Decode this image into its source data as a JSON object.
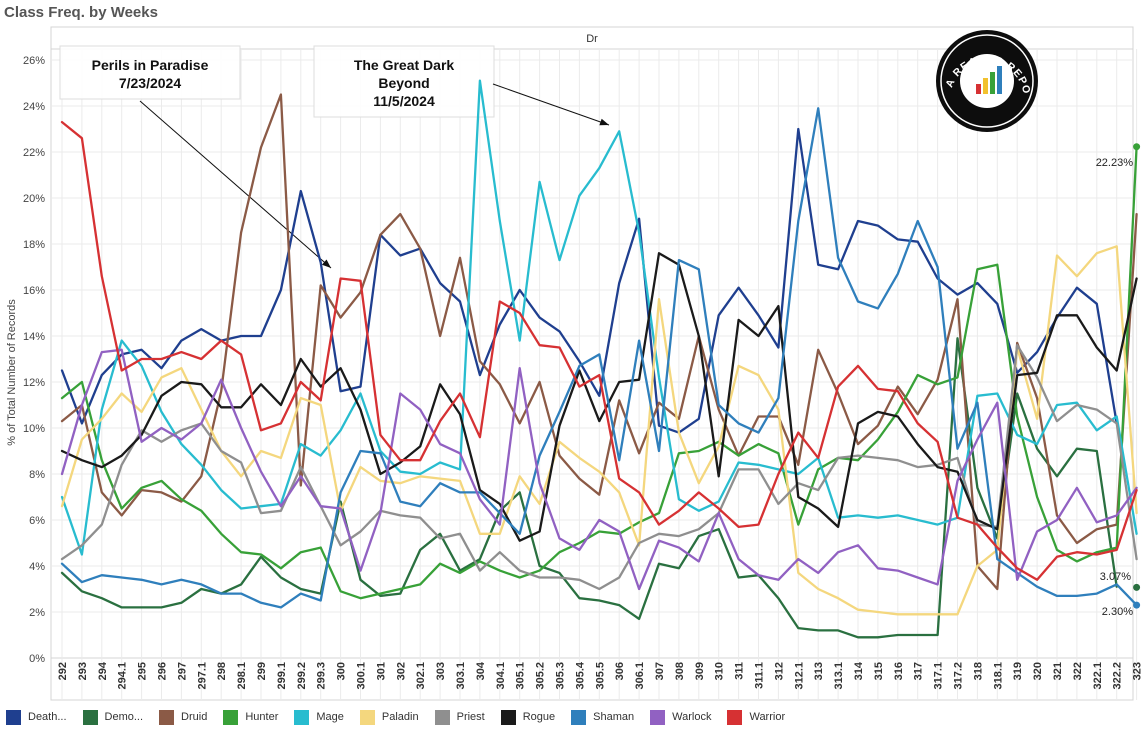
{
  "title": "Class Freq. by Weeks",
  "chart_data": {
    "type": "line",
    "column_header": "Dr",
    "ylabel": "% of Total Number of Records",
    "ylim": [
      0,
      26
    ],
    "yticks": [
      "0%",
      "2%",
      "4%",
      "6%",
      "8%",
      "10%",
      "12%",
      "14%",
      "16%",
      "18%",
      "20%",
      "22%",
      "24%",
      "26%"
    ],
    "grid": true,
    "legend_position": "bottom",
    "x_tick_labels": [
      "292",
      "293",
      "294",
      "294.1",
      "295",
      "296",
      "297",
      "297.1",
      "298",
      "298.1",
      "299",
      "299.1",
      "299.2",
      "299.3",
      "300",
      "300.1",
      "301",
      "302",
      "302.1",
      "303",
      "303.1",
      "304",
      "304.1",
      "305.1",
      "305.2",
      "305.3",
      "305.4",
      "305.5",
      "306",
      "306.1",
      "307",
      "308",
      "309",
      "310",
      "311",
      "311.1",
      "312",
      "312.1",
      "313",
      "313.1",
      "314",
      "315",
      "316",
      "317",
      "317.1",
      "317.2",
      "318",
      "318.1",
      "319",
      "320",
      "321",
      "322",
      "322.1",
      "322.2",
      "323"
    ],
    "annotations": [
      {
        "lines": [
          "Perils in Paradise",
          "7/23/2024"
        ]
      },
      {
        "lines": [
          "The Great Dark",
          "Beyond",
          "11/5/2024"
        ]
      }
    ],
    "end_labels": [
      "22.23%",
      "3.07%",
      "2.30%"
    ],
    "logo_text": "DATA REAPER REPORT",
    "series": [
      {
        "name": "Death...",
        "color": "#1f3f8f",
        "values": [
          12.5,
          10.2,
          12.3,
          13.2,
          13.4,
          12.6,
          13.8,
          14.3,
          13.8,
          14.0,
          14.0,
          16.0,
          20.3,
          17.2,
          11.6,
          11.8,
          18.4,
          17.5,
          17.8,
          16.3,
          15.5,
          12.3,
          14.5,
          16.0,
          14.8,
          14.2,
          12.9,
          11.4,
          16.3,
          19.1,
          10.1,
          9.8,
          10.4,
          14.9,
          16.1,
          14.9,
          13.5,
          23.0,
          17.1,
          16.9,
          19.0,
          18.8,
          18.2,
          18.1,
          16.5,
          15.8,
          16.3,
          15.4,
          12.4,
          13.3,
          14.8,
          16.1,
          15.4,
          10.2,
          null
        ]
      },
      {
        "name": "Demo...",
        "color": "#2a7040",
        "values": [
          3.7,
          2.9,
          2.6,
          2.2,
          2.2,
          2.2,
          2.4,
          3.0,
          2.8,
          3.2,
          4.4,
          3.5,
          3.0,
          2.8,
          6.8,
          3.4,
          2.7,
          2.8,
          4.7,
          5.4,
          3.8,
          4.3,
          6.4,
          7.2,
          4.0,
          3.7,
          2.6,
          2.5,
          2.3,
          1.7,
          4.1,
          3.9,
          5.3,
          5.6,
          3.5,
          3.6,
          2.6,
          1.3,
          1.2,
          1.2,
          0.9,
          0.9,
          1.0,
          1.0,
          1.0,
          13.9,
          7.4,
          5.2,
          11.5,
          9.1,
          7.9,
          9.1,
          9.0,
          3.1,
          null
        ]
      },
      {
        "name": "Druid",
        "color": "#8b5a46",
        "values": [
          10.3,
          11.0,
          7.2,
          6.2,
          7.3,
          7.2,
          6.8,
          7.9,
          11.6,
          18.5,
          22.2,
          24.5,
          7.5,
          16.2,
          14.8,
          15.9,
          18.4,
          19.3,
          17.8,
          14.0,
          17.4,
          12.9,
          11.9,
          10.2,
          12.0,
          8.8,
          7.8,
          7.1,
          11.2,
          8.9,
          11.1,
          10.4,
          14.0,
          10.8,
          8.8,
          10.5,
          10.5,
          8.4,
          13.4,
          11.5,
          9.3,
          10.1,
          11.8,
          10.6,
          12.1,
          15.6,
          4.0,
          3.0,
          13.7,
          11.3,
          6.2,
          5.0,
          5.6,
          5.8,
          19.3
        ]
      },
      {
        "name": "Hunter",
        "color": "#38a138",
        "values": [
          11.3,
          12.0,
          8.6,
          6.5,
          7.4,
          7.7,
          6.9,
          6.4,
          5.4,
          4.6,
          4.5,
          3.9,
          4.6,
          4.8,
          2.9,
          2.6,
          2.8,
          3.0,
          3.2,
          4.1,
          3.7,
          4.2,
          3.8,
          3.5,
          3.8,
          4.6,
          5.0,
          5.5,
          5.4,
          5.9,
          6.3,
          8.9,
          9.0,
          9.4,
          8.8,
          9.3,
          8.9,
          5.8,
          8.2,
          8.7,
          8.6,
          9.5,
          10.7,
          12.3,
          11.9,
          12.2,
          16.9,
          17.1,
          10.5,
          7.0,
          4.7,
          4.2,
          4.6,
          4.8,
          22.23
        ]
      },
      {
        "name": "Mage",
        "color": "#28bccf",
        "values": [
          7.0,
          4.5,
          10.8,
          13.8,
          12.7,
          10.7,
          9.3,
          8.4,
          7.3,
          6.5,
          6.6,
          6.7,
          9.3,
          8.8,
          9.9,
          11.5,
          9.0,
          8.1,
          8.0,
          8.5,
          8.2,
          25.1,
          19.0,
          13.8,
          20.7,
          17.3,
          20.1,
          21.3,
          22.9,
          18.5,
          12.2,
          6.9,
          6.4,
          6.8,
          8.5,
          8.4,
          8.2,
          8.0,
          8.7,
          6.1,
          6.2,
          6.1,
          6.2,
          6.0,
          5.8,
          6.1,
          11.4,
          11.5,
          9.7,
          9.3,
          11.0,
          11.1,
          9.9,
          10.5,
          5.4
        ]
      },
      {
        "name": "Paladin",
        "color": "#f4d77e",
        "values": [
          6.6,
          9.5,
          10.4,
          11.5,
          10.7,
          12.2,
          12.6,
          10.8,
          9.0,
          7.9,
          9.0,
          8.7,
          11.3,
          11.0,
          6.4,
          8.3,
          7.7,
          7.6,
          7.9,
          7.8,
          7.7,
          5.4,
          5.4,
          7.9,
          6.7,
          9.4,
          8.7,
          8.1,
          7.2,
          4.9,
          15.6,
          9.8,
          7.6,
          9.2,
          12.7,
          12.3,
          10.8,
          3.7,
          3.0,
          2.6,
          2.1,
          2.0,
          1.9,
          1.9,
          1.9,
          1.9,
          4.0,
          4.7,
          13.5,
          10.4,
          17.5,
          16.6,
          17.6,
          17.9,
          6.3
        ]
      },
      {
        "name": "Priest",
        "color": "#8f8f8f",
        "values": [
          4.3,
          4.9,
          5.8,
          8.4,
          9.9,
          9.4,
          9.9,
          10.2,
          9.0,
          8.5,
          6.3,
          6.4,
          8.3,
          6.6,
          4.9,
          5.5,
          6.4,
          6.2,
          6.1,
          5.2,
          5.4,
          3.8,
          4.6,
          3.8,
          3.5,
          3.5,
          3.4,
          3.0,
          3.5,
          5.0,
          5.4,
          5.3,
          5.6,
          6.3,
          8.2,
          8.2,
          6.7,
          7.6,
          7.3,
          8.7,
          8.8,
          8.7,
          8.6,
          8.3,
          8.4,
          8.7,
          5.8,
          5.7,
          13.6,
          12.2,
          10.3,
          11.0,
          10.8,
          10.2,
          4.3
        ]
      },
      {
        "name": "Rogue",
        "color": "#1a1a1a",
        "values": [
          9.0,
          8.6,
          8.3,
          8.8,
          9.7,
          11.4,
          12.0,
          11.9,
          10.9,
          10.9,
          11.9,
          11.0,
          13.0,
          11.8,
          12.6,
          10.8,
          8.0,
          8.5,
          9.2,
          11.9,
          10.6,
          7.3,
          6.7,
          5.1,
          5.5,
          10.1,
          12.5,
          10.3,
          12.0,
          12.1,
          17.6,
          17.1,
          14.0,
          7.9,
          14.7,
          14.0,
          15.3,
          7.0,
          6.5,
          5.7,
          10.2,
          10.7,
          10.5,
          9.3,
          8.3,
          8.1,
          6.0,
          5.6,
          12.3,
          12.4,
          14.9,
          14.9,
          13.5,
          12.5,
          16.5
        ]
      },
      {
        "name": "Shaman",
        "color": "#2f7fbc",
        "values": [
          4.1,
          3.3,
          3.6,
          3.5,
          3.4,
          3.2,
          3.4,
          3.2,
          2.8,
          2.8,
          2.4,
          2.2,
          2.8,
          2.5,
          7.2,
          9.0,
          8.9,
          6.8,
          6.6,
          7.6,
          7.2,
          7.2,
          6.3,
          5.4,
          8.8,
          10.7,
          12.7,
          13.2,
          8.6,
          13.8,
          9.0,
          17.3,
          16.9,
          11.0,
          10.2,
          9.8,
          11.3,
          19.0,
          23.9,
          17.4,
          15.5,
          15.2,
          16.7,
          19.0,
          17.0,
          9.1,
          11.1,
          4.3,
          3.7,
          3.1,
          2.7,
          2.7,
          2.8,
          3.2,
          2.3
        ]
      },
      {
        "name": "Warlock",
        "color": "#9161c2",
        "values": [
          8.0,
          11.0,
          13.3,
          13.4,
          9.4,
          10.0,
          9.5,
          10.2,
          12.1,
          10.0,
          8.1,
          6.6,
          7.9,
          6.6,
          6.5,
          3.8,
          6.3,
          11.5,
          10.8,
          9.3,
          8.9,
          6.9,
          5.8,
          12.6,
          7.6,
          5.2,
          4.7,
          6.0,
          5.5,
          3.0,
          5.1,
          4.8,
          4.2,
          6.3,
          4.3,
          3.6,
          3.4,
          4.3,
          3.7,
          4.6,
          4.9,
          3.9,
          3.8,
          3.5,
          3.2,
          7.7,
          9.5,
          11.1,
          3.4,
          5.5,
          6.0,
          7.4,
          5.9,
          6.2,
          7.4
        ]
      },
      {
        "name": "Warrior",
        "color": "#d63133",
        "values": [
          23.3,
          22.6,
          16.6,
          12.5,
          13.0,
          13.0,
          13.3,
          13.0,
          13.8,
          13.2,
          9.9,
          10.2,
          12.0,
          11.2,
          16.5,
          16.4,
          9.7,
          8.6,
          8.6,
          10.3,
          11.5,
          9.6,
          15.5,
          15.0,
          13.6,
          13.5,
          11.8,
          12.3,
          7.8,
          7.2,
          5.8,
          6.4,
          7.2,
          6.5,
          5.7,
          5.8,
          8.0,
          9.8,
          8.7,
          11.8,
          12.7,
          11.7,
          11.6,
          10.2,
          9.4,
          6.1,
          5.8,
          4.8,
          3.9,
          3.4,
          4.4,
          4.6,
          4.5,
          4.7,
          7.3
        ]
      }
    ]
  }
}
